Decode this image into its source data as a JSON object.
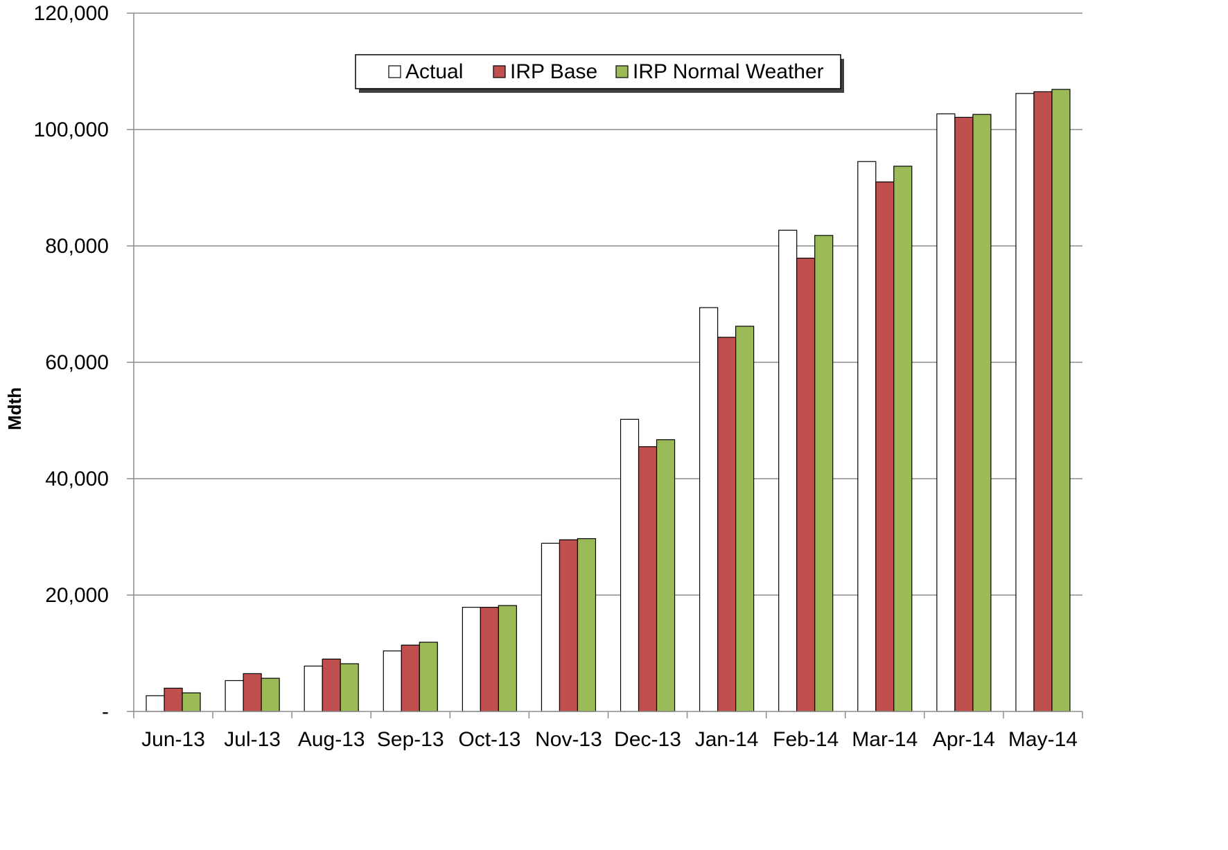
{
  "chart_data": {
    "type": "bar",
    "title": "",
    "xlabel": "",
    "ylabel": "Mdth",
    "ylim": [
      0,
      120000
    ],
    "yticks": [
      0,
      20000,
      40000,
      60000,
      80000,
      100000,
      120000
    ],
    "ytick_labels": [
      "-",
      "20,000",
      "40,000",
      "60,000",
      "80,000",
      "100,000",
      "120,000"
    ],
    "grid": true,
    "legend_position": "top-center",
    "categories": [
      "Jun-13",
      "Jul-13",
      "Aug-13",
      "Sep-13",
      "Oct-13",
      "Nov-13",
      "Dec-13",
      "Jan-14",
      "Feb-14",
      "Mar-14",
      "Apr-14",
      "May-14"
    ],
    "series": [
      {
        "name": "Actual",
        "color": "#ffffff",
        "values": [
          2700,
          5300,
          7800,
          10400,
          17900,
          28900,
          50200,
          69400,
          82700,
          94500,
          102700,
          106200
        ]
      },
      {
        "name": "IRP Base",
        "color": "#c0504d",
        "values": [
          4000,
          6500,
          9000,
          11400,
          17900,
          29500,
          45500,
          64300,
          77900,
          91000,
          102100,
          106500
        ]
      },
      {
        "name": "IRP Normal Weather",
        "color": "#9bbb59",
        "values": [
          3200,
          5700,
          8200,
          11900,
          18200,
          29700,
          46700,
          66200,
          81800,
          93700,
          102600,
          106900
        ]
      }
    ]
  }
}
